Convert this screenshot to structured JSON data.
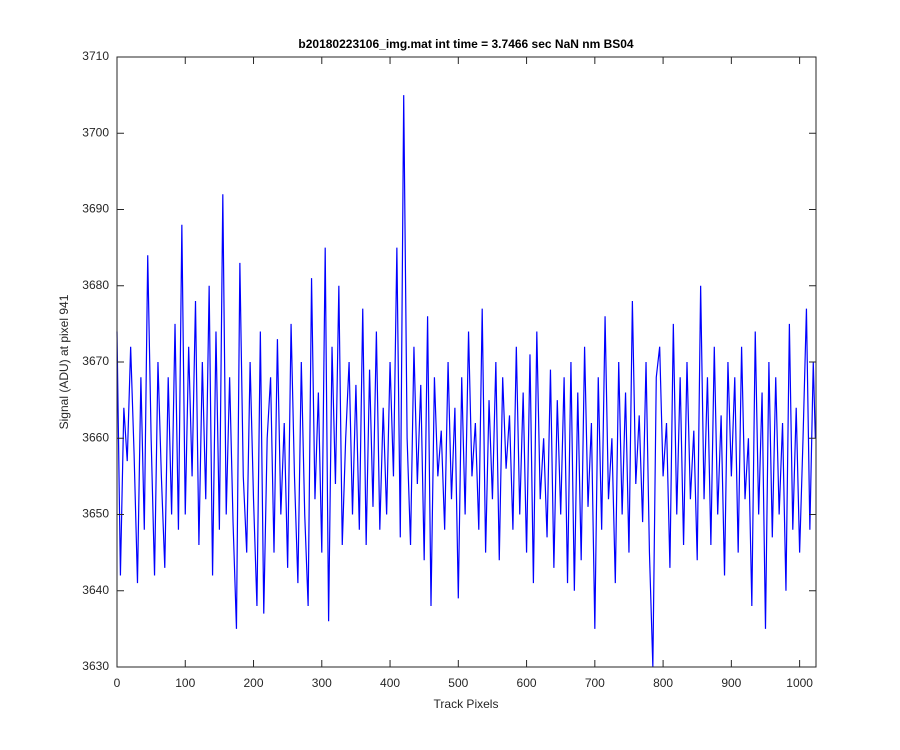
{
  "chart_data": {
    "type": "line",
    "title": "b20180223106_img.mat int time = 3.7466 sec  NaN nm BS04",
    "x_label": "Track Pixels",
    "y_label": "Signal (ADU) at pixel 941",
    "xlim": [
      0,
      1024
    ],
    "ylim": [
      3630,
      3710
    ],
    "xticks": [
      0,
      100,
      200,
      300,
      400,
      500,
      600,
      700,
      800,
      900,
      1000
    ],
    "yticks": [
      3630,
      3640,
      3650,
      3660,
      3670,
      3680,
      3690,
      3700,
      3710
    ],
    "x": [
      0,
      5,
      10,
      15,
      20,
      25,
      30,
      35,
      40,
      45,
      50,
      55,
      60,
      65,
      70,
      75,
      80,
      85,
      90,
      95,
      100,
      105,
      110,
      115,
      120,
      125,
      130,
      135,
      140,
      145,
      150,
      155,
      160,
      165,
      170,
      175,
      180,
      185,
      190,
      195,
      200,
      205,
      210,
      215,
      220,
      225,
      230,
      235,
      240,
      245,
      250,
      255,
      260,
      265,
      270,
      275,
      280,
      285,
      290,
      295,
      300,
      305,
      310,
      315,
      320,
      325,
      330,
      335,
      340,
      345,
      350,
      355,
      360,
      365,
      370,
      375,
      380,
      385,
      390,
      395,
      400,
      405,
      410,
      415,
      420,
      425,
      430,
      435,
      440,
      445,
      450,
      455,
      460,
      465,
      470,
      475,
      480,
      485,
      490,
      495,
      500,
      505,
      510,
      515,
      520,
      525,
      530,
      535,
      540,
      545,
      550,
      555,
      560,
      565,
      570,
      575,
      580,
      585,
      590,
      595,
      600,
      605,
      610,
      615,
      620,
      625,
      630,
      635,
      640,
      645,
      650,
      655,
      660,
      665,
      670,
      675,
      680,
      685,
      690,
      695,
      700,
      705,
      710,
      715,
      720,
      725,
      730,
      735,
      740,
      745,
      750,
      755,
      760,
      765,
      770,
      775,
      780,
      785,
      790,
      795,
      800,
      805,
      810,
      815,
      820,
      825,
      830,
      835,
      840,
      845,
      850,
      855,
      860,
      865,
      870,
      875,
      880,
      885,
      890,
      895,
      900,
      905,
      910,
      915,
      920,
      925,
      930,
      935,
      940,
      945,
      950,
      955,
      960,
      965,
      970,
      975,
      980,
      985,
      990,
      995,
      1000,
      1005,
      1010,
      1015,
      1020,
      1023
    ],
    "series": [
      {
        "color": "#0000ff",
        "values": [
          3674,
          3642,
          3664,
          3657,
          3672,
          3658,
          3641,
          3668,
          3648,
          3684,
          3660,
          3642,
          3670,
          3655,
          3643,
          3668,
          3650,
          3675,
          3648,
          3688,
          3650,
          3672,
          3655,
          3678,
          3646,
          3670,
          3652,
          3680,
          3642,
          3674,
          3648,
          3692,
          3650,
          3668,
          3649,
          3635,
          3683,
          3655,
          3645,
          3670,
          3652,
          3638,
          3674,
          3637,
          3660,
          3668,
          3645,
          3673,
          3650,
          3662,
          3643,
          3675,
          3655,
          3641,
          3670,
          3650,
          3638,
          3681,
          3652,
          3666,
          3645,
          3685,
          3636,
          3672,
          3654,
          3680,
          3646,
          3660,
          3670,
          3650,
          3667,
          3648,
          3677,
          3646,
          3669,
          3651,
          3674,
          3648,
          3664,
          3650,
          3670,
          3655,
          3685,
          3647,
          3705,
          3660,
          3646,
          3672,
          3654,
          3667,
          3644,
          3676,
          3638,
          3668,
          3655,
          3661,
          3648,
          3670,
          3652,
          3664,
          3639,
          3668,
          3650,
          3674,
          3655,
          3662,
          3648,
          3677,
          3645,
          3665,
          3652,
          3670,
          3644,
          3668,
          3656,
          3663,
          3648,
          3672,
          3650,
          3666,
          3645,
          3671,
          3641,
          3674,
          3652,
          3660,
          3647,
          3669,
          3643,
          3665,
          3650,
          3668,
          3641,
          3670,
          3640,
          3666,
          3644,
          3672,
          3651,
          3662,
          3635,
          3668,
          3648,
          3676,
          3652,
          3660,
          3641,
          3670,
          3650,
          3666,
          3645,
          3678,
          3654,
          3663,
          3649,
          3670,
          3645,
          3630,
          3668,
          3672,
          3655,
          3662,
          3643,
          3675,
          3650,
          3668,
          3646,
          3670,
          3652,
          3661,
          3644,
          3680,
          3652,
          3668,
          3646,
          3672,
          3650,
          3663,
          3642,
          3670,
          3655,
          3668,
          3645,
          3672,
          3652,
          3660,
          3638,
          3674,
          3650,
          3666,
          3635,
          3670,
          3647,
          3668,
          3650,
          3662,
          3640,
          3675,
          3648,
          3664,
          3645,
          3660,
          3677,
          3648,
          3670,
          3660
        ]
      }
    ]
  }
}
